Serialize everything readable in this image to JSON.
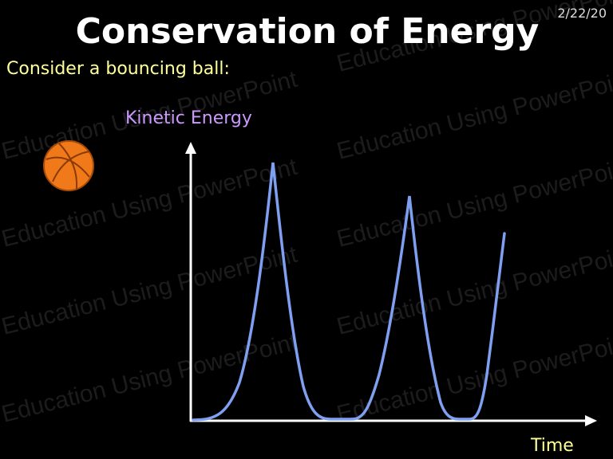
{
  "header": {
    "title": "Conservation of Energy",
    "date": "2/22/20"
  },
  "subtitle": "Consider a bouncing ball:",
  "diagram": {
    "y_label": "Kinetic Energy",
    "x_label": "Time"
  },
  "watermark": "Education Using PowerPoint"
}
